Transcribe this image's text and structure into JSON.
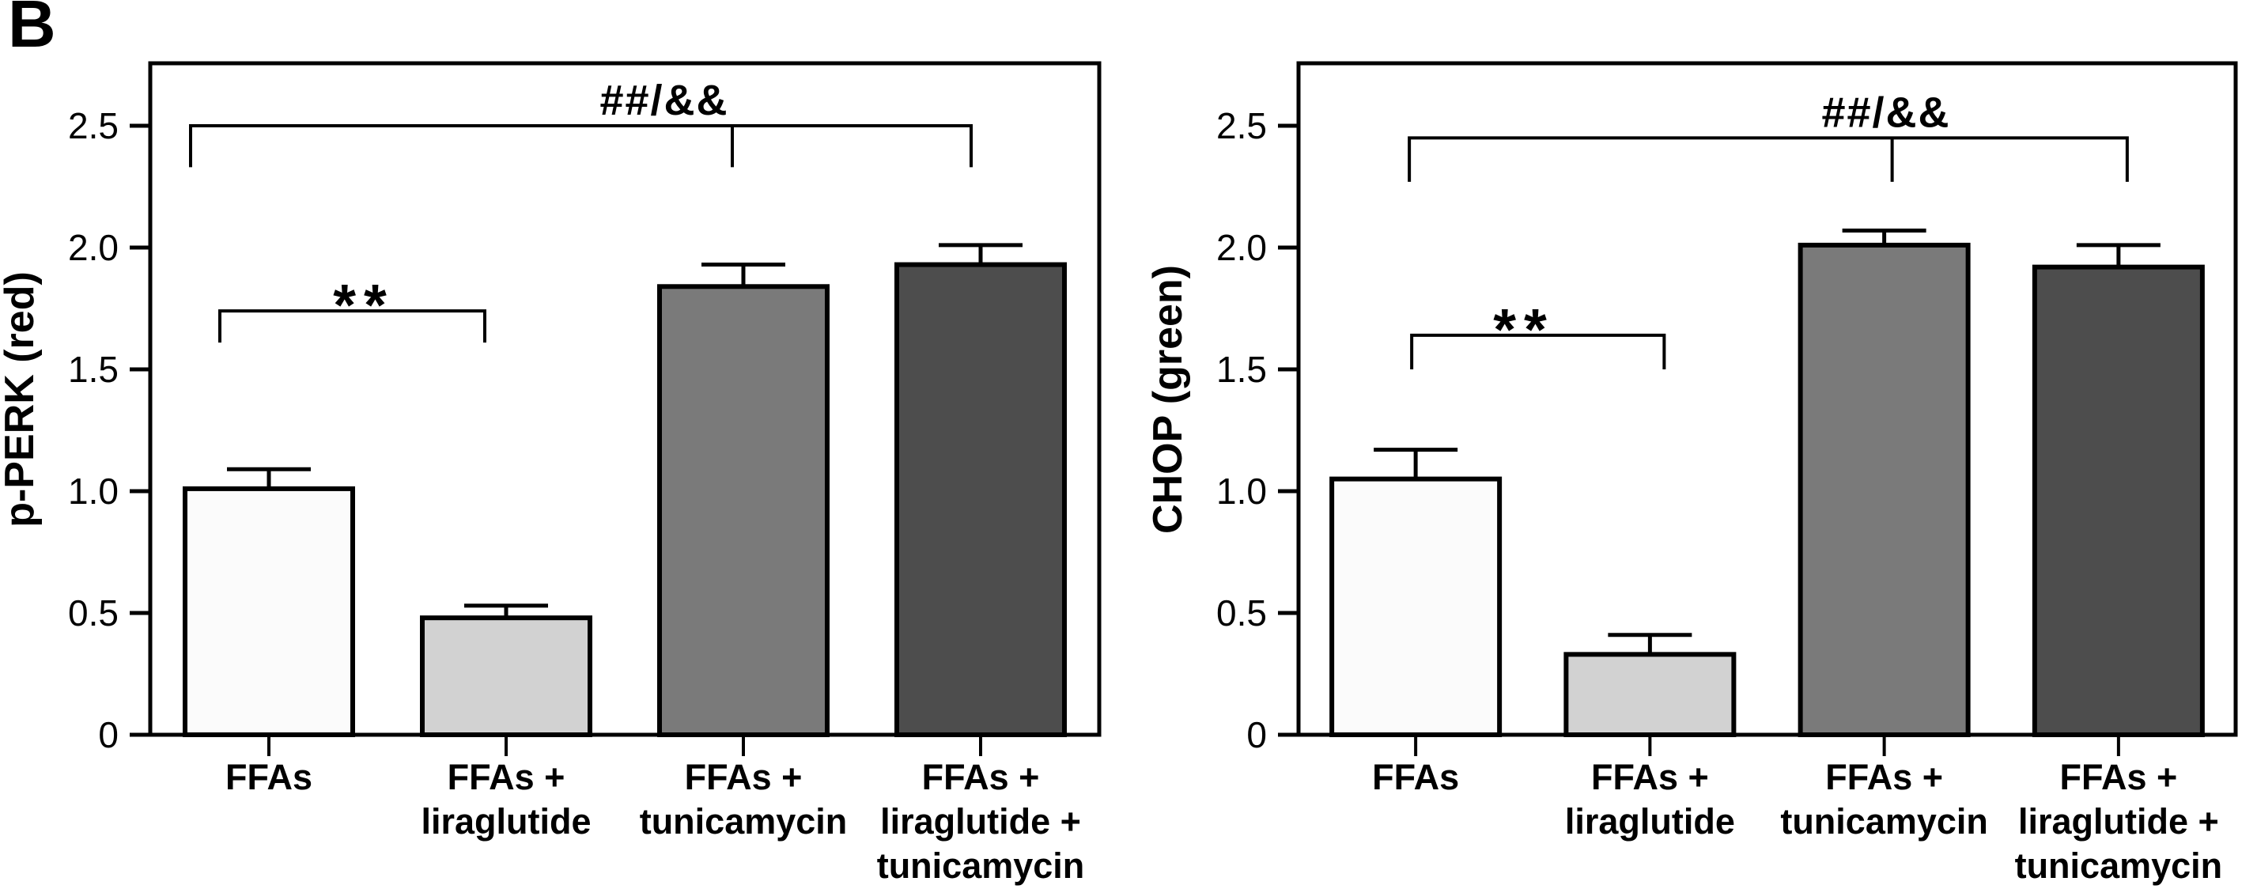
{
  "figure": {
    "panel_label": "B",
    "background": "#ffffff",
    "ink_color": "#000000"
  },
  "chart_data": [
    {
      "type": "bar",
      "panel": "left",
      "title": "",
      "xlabel": "",
      "ylabel": "p-PERK (red)",
      "categories": [
        "FFAs",
        "FFAs +\nliraglutide",
        "FFAs +\ntunicamycin",
        "FFAs +\nliraglutide +\ntunicamycin"
      ],
      "values": [
        1.01,
        0.48,
        1.84,
        1.93
      ],
      "errors": [
        0.08,
        0.05,
        0.09,
        0.08
      ],
      "bar_colors": [
        "#fbfbfb",
        "#d2d2d2",
        "#7a7a7a",
        "#4d4d4d"
      ],
      "yticks": [
        0,
        0.5,
        1.0,
        1.5,
        2.0,
        2.5
      ],
      "ytick_labels": [
        "0",
        "0.5",
        "1.0",
        "1.5",
        "2.0",
        "2.5"
      ],
      "ylim": [
        0,
        2.76
      ],
      "grid": false,
      "legend": null,
      "significance": [
        {
          "label": "**",
          "style": "stars",
          "line_y": 1.74,
          "drop_y": 1.61,
          "ends": [
            {
              "bar": 0,
              "dx": -62
            },
            {
              "bar": 1,
              "dx": -27
            }
          ],
          "mid_ticks": [],
          "text_x": 460
        },
        {
          "label": "##/&&",
          "style": "hash",
          "line_y": 2.5,
          "drop_y": 2.33,
          "ends": [
            {
              "bar": 0,
              "dx": -99
            },
            {
              "bar": 3,
              "dx": -12
            }
          ],
          "mid_ticks": [
            {
              "bar": 2,
              "dx": -14
            }
          ],
          "text_x": 840
        }
      ]
    },
    {
      "type": "bar",
      "panel": "right",
      "title": "",
      "xlabel": "",
      "ylabel": "CHOP (green)",
      "categories": [
        "FFAs",
        "FFAs +\nliraglutide",
        "FFAs +\ntunicamycin",
        "FFAs +\nliraglutide +\ntunicamycin"
      ],
      "values": [
        1.05,
        0.33,
        2.01,
        1.92
      ],
      "errors": [
        0.12,
        0.08,
        0.06,
        0.09
      ],
      "bar_colors": [
        "#fbfbfb",
        "#d2d2d2",
        "#7a7a7a",
        "#4d4d4d"
      ],
      "yticks": [
        0,
        0.5,
        1.0,
        1.5,
        2.0,
        2.5
      ],
      "ytick_labels": [
        "0",
        "0.5",
        "1.0",
        "1.5",
        "2.0",
        "2.5"
      ],
      "ylim": [
        0,
        2.76
      ],
      "grid": false,
      "legend": null,
      "significance": [
        {
          "label": "**",
          "style": "stars",
          "line_y": 1.64,
          "drop_y": 1.5,
          "ends": [
            {
              "bar": 0,
              "dx": -5
            },
            {
              "bar": 1,
              "dx": 18
            }
          ],
          "mid_ticks": [],
          "text_x": 500
        },
        {
          "label": "##/&&",
          "style": "hash",
          "line_y": 2.45,
          "drop_y": 2.27,
          "ends": [
            {
              "bar": 0,
              "dx": -8
            },
            {
              "bar": 3,
              "dx": 11
            }
          ],
          "mid_ticks": [
            {
              "bar": 2,
              "dx": 10
            }
          ],
          "text_x": 958
        }
      ]
    }
  ]
}
